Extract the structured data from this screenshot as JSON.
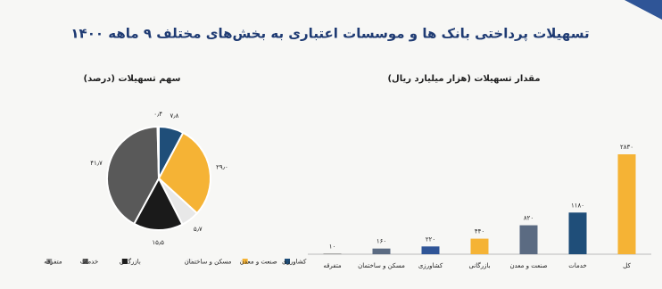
{
  "title": "تسهیلات پرداختی بانک ها و موسسات اعتباری به بخش‌های مختلف ۹ ماهه ۱۴۰۰",
  "chart_data": [
    {
      "type": "bar",
      "title": "مقدار تسهیلات (هزار میلیارد ریال)",
      "categories": [
        "متفرقه",
        "مسکن و ساختمان",
        "کشاورزی",
        "بازرگانی",
        "صنعت و معدن",
        "خدمات",
        "کل"
      ],
      "values": [
        10,
        160,
        220,
        440,
        820,
        1180,
        2830
      ],
      "value_labels": [
        "۱۰",
        "۱۶۰",
        "۲۲۰",
        "۴۴۰",
        "۸۲۰",
        "۱۱۸۰",
        "۲۸۳۰"
      ],
      "colors": [
        "#3a3a3a",
        "#5b6b82",
        "#2f5597",
        "#f5b335",
        "#5b6b82",
        "#1f4e79",
        "#f5b335"
      ]
    },
    {
      "type": "pie",
      "title": "سهم تسهیلات (درصد)",
      "categories": [
        "کشاورزی",
        "صنعت و معدن",
        "مسکن و ساختمان",
        "بازرگانی",
        "خدمات",
        "متفرقه"
      ],
      "values": [
        7.8,
        29.0,
        5.7,
        15.5,
        41.7,
        0.4
      ],
      "value_labels": [
        "۷٫۸",
        "۲۹٫۰",
        "۵٫۷",
        "۱۵٫۵",
        "۴۱٫۷",
        "۰٫۴"
      ],
      "colors": [
        "#1f4e79",
        "#f5b335",
        "#e8e8e8",
        "#1a1a1a",
        "#595959",
        "#999999"
      ]
    }
  ]
}
